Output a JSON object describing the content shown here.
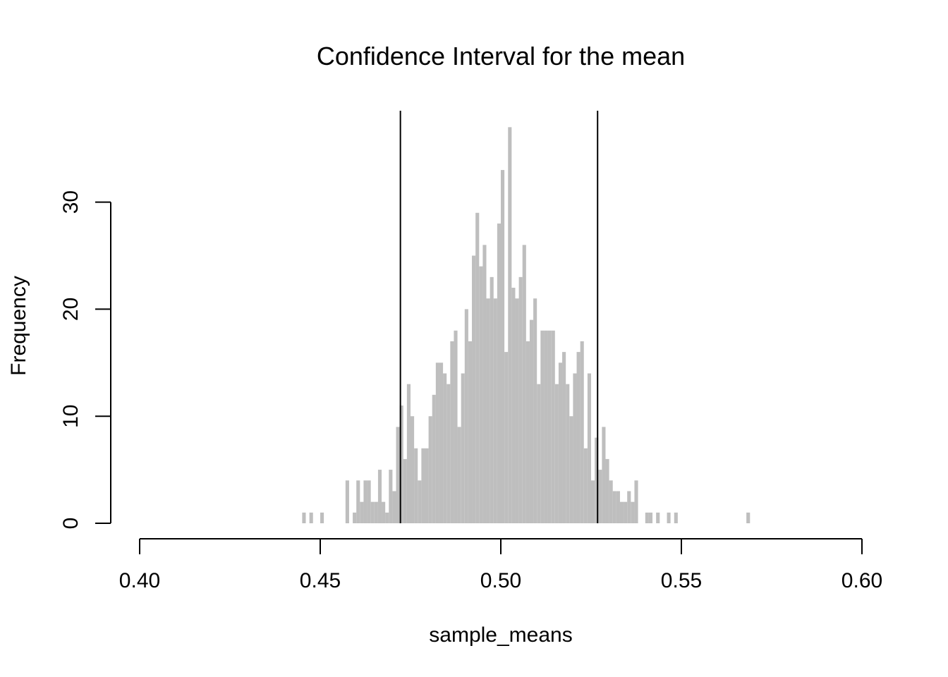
{
  "chart_data": {
    "type": "bar",
    "histogram": true,
    "title": "Confidence Interval for the mean",
    "xlabel": "sample_means",
    "ylabel": "Frequency",
    "xlim": [
      0.4,
      0.6
    ],
    "ylim": [
      0,
      37
    ],
    "x_ticks": [
      0.4,
      0.45,
      0.5,
      0.55,
      0.6
    ],
    "x_tick_labels": [
      "0.40",
      "0.45",
      "0.50",
      "0.55",
      "0.60"
    ],
    "y_ticks": [
      0,
      10,
      20,
      30
    ],
    "y_tick_labels": [
      "0",
      "10",
      "20",
      "30"
    ],
    "bin_width": 0.001,
    "bins": [
      {
        "x": 0.445,
        "count": 1
      },
      {
        "x": 0.447,
        "count": 1
      },
      {
        "x": 0.45,
        "count": 1
      },
      {
        "x": 0.457,
        "count": 4
      },
      {
        "x": 0.459,
        "count": 1
      },
      {
        "x": 0.46,
        "count": 4
      },
      {
        "x": 0.461,
        "count": 2
      },
      {
        "x": 0.462,
        "count": 4
      },
      {
        "x": 0.463,
        "count": 4
      },
      {
        "x": 0.464,
        "count": 2
      },
      {
        "x": 0.465,
        "count": 2
      },
      {
        "x": 0.466,
        "count": 5
      },
      {
        "x": 0.467,
        "count": 2
      },
      {
        "x": 0.468,
        "count": 1
      },
      {
        "x": 0.469,
        "count": 5
      },
      {
        "x": 0.47,
        "count": 3
      },
      {
        "x": 0.471,
        "count": 9
      },
      {
        "x": 0.472,
        "count": 11
      },
      {
        "x": 0.473,
        "count": 6
      },
      {
        "x": 0.474,
        "count": 13
      },
      {
        "x": 0.475,
        "count": 10
      },
      {
        "x": 0.476,
        "count": 7
      },
      {
        "x": 0.477,
        "count": 4
      },
      {
        "x": 0.478,
        "count": 7
      },
      {
        "x": 0.479,
        "count": 7
      },
      {
        "x": 0.48,
        "count": 10
      },
      {
        "x": 0.481,
        "count": 12
      },
      {
        "x": 0.482,
        "count": 15
      },
      {
        "x": 0.483,
        "count": 15
      },
      {
        "x": 0.484,
        "count": 14
      },
      {
        "x": 0.485,
        "count": 13
      },
      {
        "x": 0.486,
        "count": 17
      },
      {
        "x": 0.487,
        "count": 18
      },
      {
        "x": 0.488,
        "count": 9
      },
      {
        "x": 0.489,
        "count": 14
      },
      {
        "x": 0.49,
        "count": 20
      },
      {
        "x": 0.491,
        "count": 17
      },
      {
        "x": 0.492,
        "count": 25
      },
      {
        "x": 0.493,
        "count": 29
      },
      {
        "x": 0.494,
        "count": 24
      },
      {
        "x": 0.495,
        "count": 26
      },
      {
        "x": 0.496,
        "count": 21
      },
      {
        "x": 0.497,
        "count": 23
      },
      {
        "x": 0.498,
        "count": 21
      },
      {
        "x": 0.499,
        "count": 28
      },
      {
        "x": 0.5,
        "count": 33
      },
      {
        "x": 0.501,
        "count": 16
      },
      {
        "x": 0.502,
        "count": 37
      },
      {
        "x": 0.503,
        "count": 22
      },
      {
        "x": 0.504,
        "count": 21
      },
      {
        "x": 0.505,
        "count": 23
      },
      {
        "x": 0.506,
        "count": 26
      },
      {
        "x": 0.507,
        "count": 17
      },
      {
        "x": 0.508,
        "count": 19
      },
      {
        "x": 0.509,
        "count": 21
      },
      {
        "x": 0.51,
        "count": 13
      },
      {
        "x": 0.511,
        "count": 18
      },
      {
        "x": 0.512,
        "count": 18
      },
      {
        "x": 0.513,
        "count": 18
      },
      {
        "x": 0.514,
        "count": 18
      },
      {
        "x": 0.515,
        "count": 13
      },
      {
        "x": 0.516,
        "count": 15
      },
      {
        "x": 0.517,
        "count": 16
      },
      {
        "x": 0.518,
        "count": 13
      },
      {
        "x": 0.519,
        "count": 10
      },
      {
        "x": 0.52,
        "count": 14
      },
      {
        "x": 0.521,
        "count": 16
      },
      {
        "x": 0.522,
        "count": 17
      },
      {
        "x": 0.523,
        "count": 7
      },
      {
        "x": 0.524,
        "count": 14
      },
      {
        "x": 0.525,
        "count": 4
      },
      {
        "x": 0.526,
        "count": 8
      },
      {
        "x": 0.527,
        "count": 5
      },
      {
        "x": 0.528,
        "count": 9
      },
      {
        "x": 0.529,
        "count": 6
      },
      {
        "x": 0.53,
        "count": 4
      },
      {
        "x": 0.531,
        "count": 3
      },
      {
        "x": 0.532,
        "count": 3
      },
      {
        "x": 0.533,
        "count": 2
      },
      {
        "x": 0.534,
        "count": 2
      },
      {
        "x": 0.535,
        "count": 3
      },
      {
        "x": 0.536,
        "count": 2
      },
      {
        "x": 0.537,
        "count": 4
      },
      {
        "x": 0.54,
        "count": 1
      },
      {
        "x": 0.541,
        "count": 1
      },
      {
        "x": 0.543,
        "count": 1
      },
      {
        "x": 0.546,
        "count": 1
      },
      {
        "x": 0.548,
        "count": 1
      },
      {
        "x": 0.568,
        "count": 1
      }
    ],
    "ci_bounds": [
      0.4722,
      0.5268
    ],
    "grid": false,
    "bar_color": "#bebebe",
    "line_color": "#000000"
  }
}
